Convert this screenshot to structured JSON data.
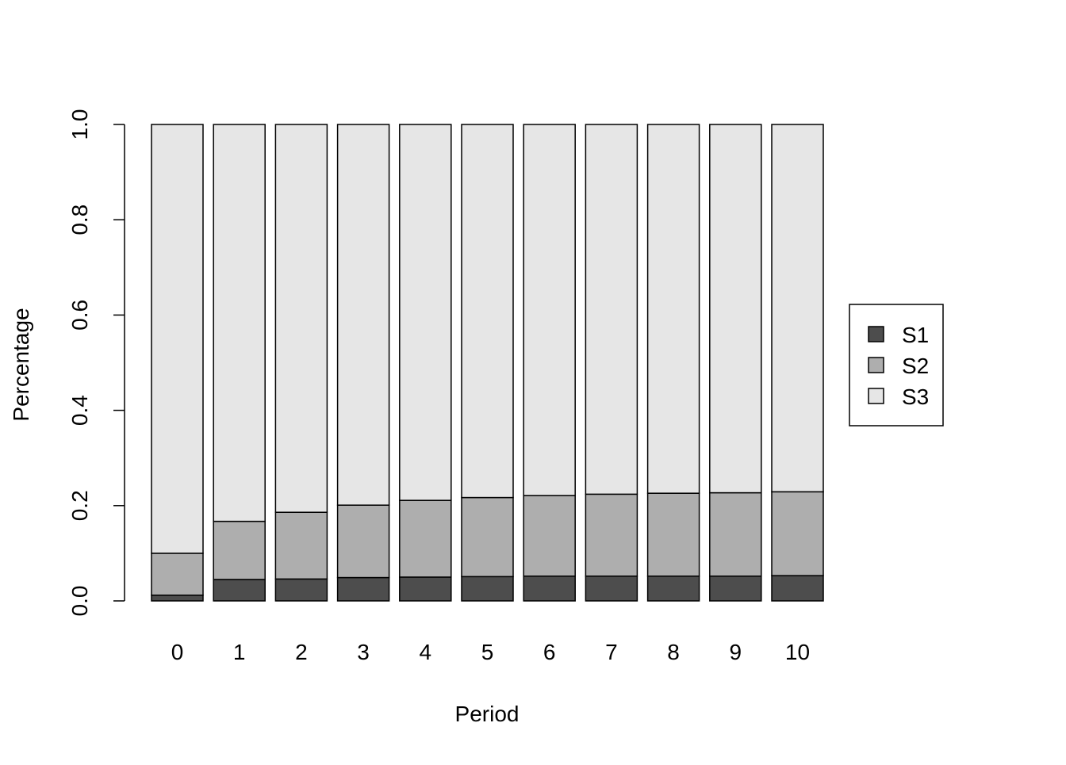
{
  "chart_data": {
    "type": "bar",
    "stacked": true,
    "title": "",
    "xlabel": "Period",
    "ylabel": "Percentage",
    "ylim": [
      0,
      1
    ],
    "yticks": [
      "0.0",
      "0.2",
      "0.4",
      "0.6",
      "0.8",
      "1.0"
    ],
    "categories": [
      "0",
      "1",
      "2",
      "3",
      "4",
      "5",
      "6",
      "7",
      "8",
      "9",
      "10"
    ],
    "series": [
      {
        "name": "S1",
        "color": "#4d4d4d",
        "values": [
          0.012,
          0.045,
          0.046,
          0.049,
          0.05,
          0.051,
          0.052,
          0.052,
          0.052,
          0.052,
          0.053
        ]
      },
      {
        "name": "S2",
        "color": "#aeaeae",
        "values": [
          0.088,
          0.122,
          0.14,
          0.152,
          0.161,
          0.166,
          0.169,
          0.172,
          0.174,
          0.175,
          0.176
        ]
      },
      {
        "name": "S3",
        "color": "#e6e6e6",
        "values": [
          0.9,
          0.833,
          0.814,
          0.799,
          0.789,
          0.783,
          0.779,
          0.776,
          0.774,
          0.773,
          0.771
        ]
      }
    ],
    "legend": {
      "position": "right",
      "entries": [
        "S1",
        "S2",
        "S3"
      ]
    },
    "grid": false
  }
}
